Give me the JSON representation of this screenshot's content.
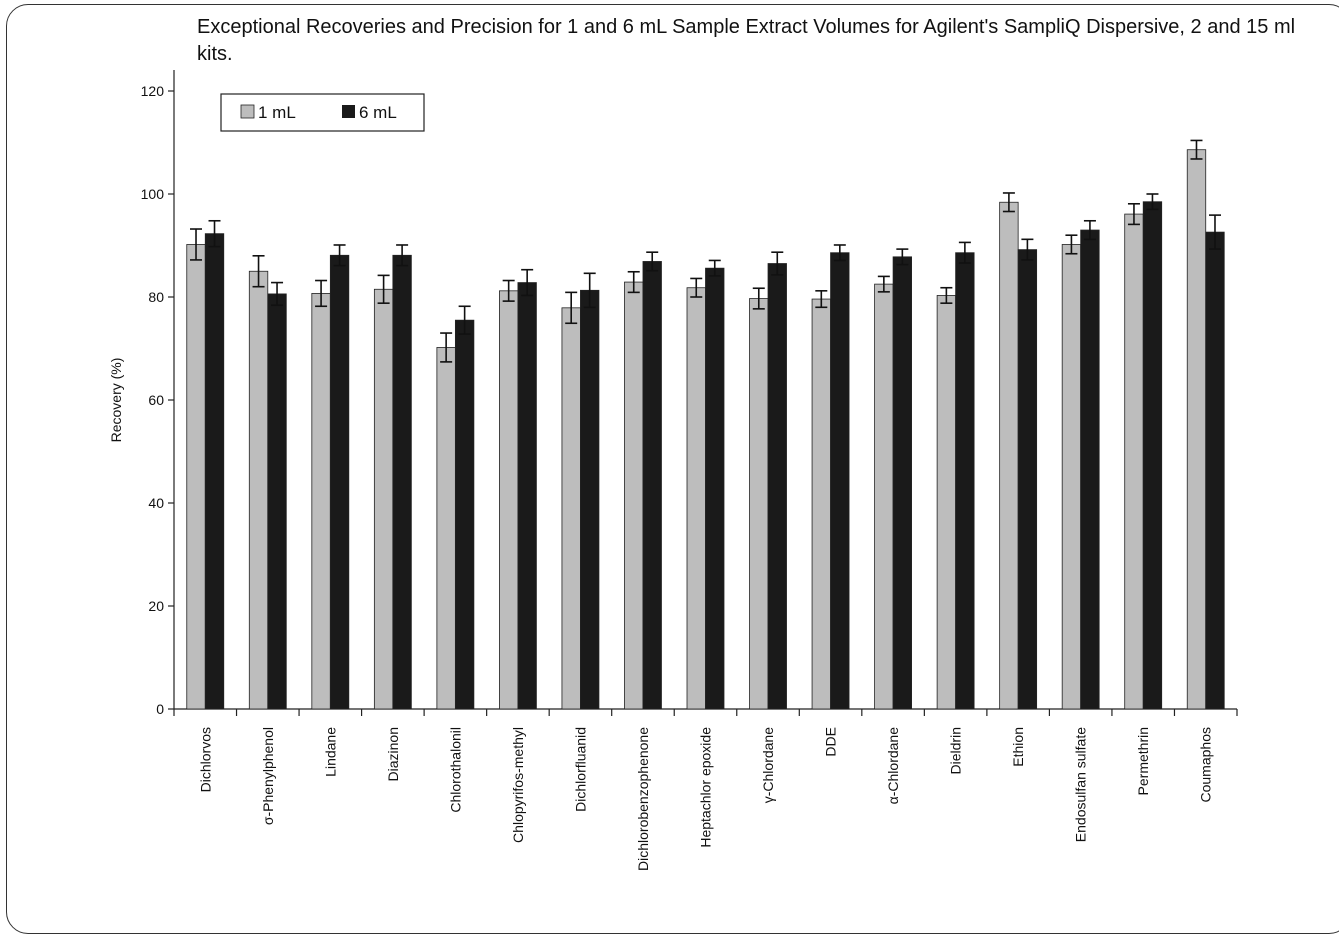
{
  "chart_data": {
    "type": "bar",
    "title": "Exceptional Recoveries and Precision for 1 and 6 mL Sample Extract Volumes for Agilent's SampliQ Dispersive, 2 and 15 ml kits.",
    "xlabel": "",
    "ylabel": "Recovery (%)",
    "ylim": [
      0,
      120
    ],
    "yticks": [
      0,
      20,
      40,
      60,
      80,
      100,
      120
    ],
    "grid": false,
    "legend_position": "top-left",
    "categories": [
      "Dichlorvos",
      "σ-Phenylphenol",
      "Lindane",
      "Diazinon",
      "Chlorothalonil",
      "Chlopyrifos-methyl",
      "Dichlorfluanid",
      "Dichlorobenzophenone",
      "Heptachlor epoxide",
      "γ-Chlordane",
      "DDE",
      "α-Chlordane",
      "Dieldrin",
      "Ethion",
      "Endosulfan sulfate",
      "Permethrin",
      "Coumaphos"
    ],
    "series": [
      {
        "name": "1 mL",
        "color": "#bdbdbd",
        "values": [
          90.2,
          85.0,
          80.7,
          81.5,
          70.2,
          81.2,
          77.9,
          82.9,
          81.8,
          79.7,
          79.6,
          82.5,
          80.3,
          98.4,
          90.2,
          96.1,
          108.6
        ],
        "errors": [
          3.0,
          3.0,
          2.5,
          2.7,
          2.8,
          2.0,
          3.0,
          2.0,
          1.8,
          2.0,
          1.6,
          1.5,
          1.5,
          1.8,
          1.8,
          2.0,
          1.8
        ]
      },
      {
        "name": "6 mL",
        "color": "#1a1a1a",
        "values": [
          92.3,
          80.6,
          88.1,
          88.1,
          75.5,
          82.8,
          81.3,
          86.9,
          85.6,
          86.5,
          88.6,
          87.8,
          88.6,
          89.2,
          93.0,
          98.5,
          92.6
        ]
      }
    ],
    "errors_6ml": [
      2.5,
      2.2,
      2.0,
      2.0,
      2.7,
      2.5,
      3.3,
      1.8,
      1.5,
      2.2,
      1.5,
      1.5,
      2.0,
      2.0,
      1.8,
      1.5,
      3.3
    ]
  }
}
